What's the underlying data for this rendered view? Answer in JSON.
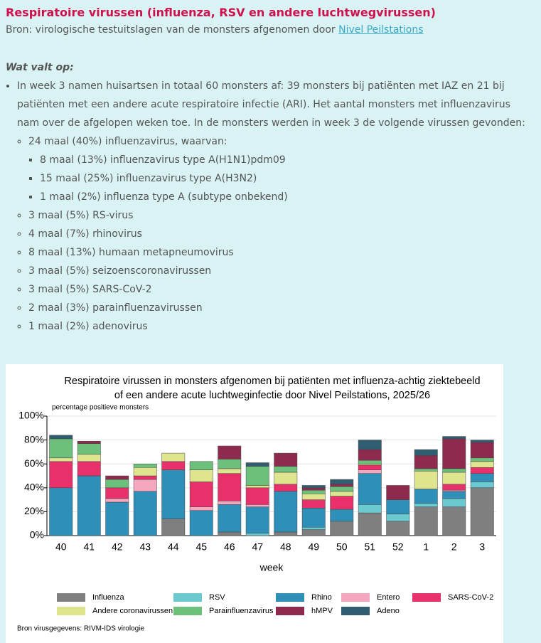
{
  "header": {
    "title": "Respiratoire virussen (influenza, RSV en andere luchtwegvirussen)",
    "source": "Bron: virologische testuitslagen van de monsters afgenomen door",
    "source_link": "Nivel Peilstations"
  },
  "findings": {
    "heading": "Wat valt op:",
    "items": [
      {
        "text": "In week 3 namen huisartsen in totaal 60 monsters af: 39 monsters bij patiënten met IAZ en 21 bij patiënten met een andere acute respiratoire infectie (ARI). Het aantal monsters met influenzavirus nam over de afgelopen weken toe. In de monsters werden in week 3 de volgende virussen gevonden:",
        "children": [
          {
            "text": "24 maal (40%) influenzavirus, waarvan:",
            "children": [
              {
                "text": "8 maal (13%) influenzavirus type A(H1N1)pdm09"
              },
              {
                "text": "15 maal (25%) influenzavirus type A(H3N2)"
              },
              {
                "text": "1 maal (2%) influenza type A (subtype onbekend)"
              }
            ]
          },
          {
            "text": "3 maal (5%) RS-virus"
          },
          {
            "text": "4 maal (7%) rhinovirus"
          },
          {
            "text": "8 maal (13%) humaan metapneumovirus"
          },
          {
            "text": "3 maal (5%) seizoenscoronavirussen"
          },
          {
            "text": "3 maal (5%) SARS-CoV-2"
          },
          {
            "text": "2 maal (3%) parainfluenzavirussen"
          },
          {
            "text": "1 maal (2%) adenovirus"
          }
        ]
      }
    ]
  },
  "chart_data": {
    "type": "stacked_bar",
    "title": "Respiratoire virussen in monsters afgenomen bij patiënten met influenza-achtig ziektebeeld",
    "subtitle": "of een andere acute luchtweginfectie door Nivel Peilstations, 2025/26",
    "y_label": "percentage positieve monsters",
    "x_label": "week",
    "footnote": "Bron virusgegevens: RIVM-IDS virologie",
    "categories": [
      "40",
      "41",
      "42",
      "43",
      "44",
      "45",
      "46",
      "47",
      "48",
      "49",
      "50",
      "51",
      "52",
      "1",
      "2",
      "3"
    ],
    "ylim": [
      0,
      100
    ],
    "yticks": [
      {
        "value": 0,
        "label": "0%"
      },
      {
        "value": 20,
        "label": "20%"
      },
      {
        "value": 40,
        "label": "40%"
      },
      {
        "value": 60,
        "label": "60%"
      },
      {
        "value": 80,
        "label": "80%"
      },
      {
        "value": 100,
        "label": "100%"
      }
    ],
    "grid": true,
    "series": [
      {
        "name": "Influenza",
        "color": "#7f7f7f",
        "values": [
          0,
          0,
          0,
          0,
          14,
          0,
          3,
          0,
          3,
          5,
          12,
          19,
          12,
          24,
          24,
          40
        ]
      },
      {
        "name": "RSV",
        "color": "#6cc9d0",
        "values": [
          0,
          0,
          0,
          0,
          0,
          0,
          0,
          2,
          0,
          2,
          0,
          7,
          6,
          3,
          7,
          5
        ]
      },
      {
        "name": "Rhino",
        "color": "#2e8fb8",
        "values": [
          40,
          50,
          28,
          37,
          41,
          21,
          23,
          22,
          34,
          16,
          10,
          26,
          12,
          12,
          6,
          7
        ]
      },
      {
        "name": "Entero",
        "color": "#f4a7bf",
        "values": [
          0,
          0,
          3,
          10,
          0,
          3,
          3,
          2,
          0,
          0,
          0,
          3,
          0,
          0,
          1,
          0
        ]
      },
      {
        "name": "SARS-CoV-2",
        "color": "#e8306a",
        "values": [
          22,
          12,
          9,
          3,
          7,
          21,
          23,
          14,
          6,
          7,
          11,
          4,
          0,
          0,
          5,
          5
        ]
      },
      {
        "name": "Andere coronavirussen",
        "color": "#dfe58e",
        "values": [
          3,
          6,
          0,
          7,
          7,
          10,
          4,
          2,
          10,
          5,
          4,
          1,
          0,
          15,
          10,
          5
        ]
      },
      {
        "name": "Parainfluenzavirus",
        "color": "#6cc07c",
        "values": [
          16,
          9,
          7,
          3,
          0,
          7,
          8,
          16,
          5,
          3,
          4,
          3,
          0,
          2,
          3,
          3
        ]
      },
      {
        "name": "hMPV",
        "color": "#8e2a4e",
        "values": [
          0,
          2,
          3,
          0,
          0,
          0,
          11,
          0,
          11,
          2,
          2,
          9,
          12,
          11,
          25,
          13
        ]
      },
      {
        "name": "Adeno",
        "color": "#305d70",
        "values": [
          3,
          0,
          0,
          0,
          0,
          0,
          0,
          3,
          0,
          2,
          4,
          8,
          0,
          5,
          2,
          2
        ]
      }
    ]
  }
}
